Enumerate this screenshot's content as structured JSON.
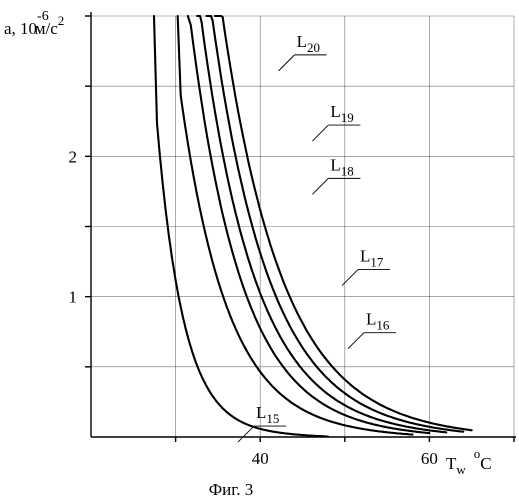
{
  "chart_data": {
    "type": "line",
    "title": "",
    "ylabel": {
      "base": "a, 10",
      "exp": "-6",
      "unit": "м/с",
      "unit_exp": "2"
    },
    "xlabel": {
      "base": "T",
      "sub": "w",
      "deg": "o",
      "unit": "C"
    },
    "caption": "Фиг. 3",
    "xlim": [
      20,
      70
    ],
    "ylim": [
      0,
      3
    ],
    "x_ticks": [
      {
        "value": 40,
        "label": "40"
      },
      {
        "value": 60,
        "label": "60"
      }
    ],
    "y_ticks": [
      {
        "value": 1,
        "label": "1"
      },
      {
        "value": 2,
        "label": "2"
      }
    ],
    "grid": true,
    "series": [
      {
        "name_base": "L",
        "name_sub": "15",
        "x_start": 27.8,
        "x_end": 48,
        "c": 2.2,
        "k": 0.32,
        "label_at": [
          39.5,
          0.135
        ]
      },
      {
        "name_base": "L",
        "name_sub": "16",
        "x_start": 30.6,
        "x_end": 58,
        "c": 2.4,
        "k": 0.18,
        "label_at": [
          52.5,
          0.8
        ]
      },
      {
        "name_base": "L",
        "name_sub": "17",
        "x_start": 31.8,
        "x_end": 60,
        "c": 2.9,
        "k": 0.165,
        "label_at": [
          51.8,
          1.25
        ]
      },
      {
        "name_base": "L",
        "name_sub": "18",
        "x_start": 32.9,
        "x_end": 62,
        "c": 3.0,
        "k": 0.155,
        "label_at": [
          48.3,
          1.9
        ]
      },
      {
        "name_base": "L",
        "name_sub": "19",
        "x_start": 34.0,
        "x_end": 64,
        "c": 3.1,
        "k": 0.147,
        "label_at": [
          48.3,
          2.28
        ]
      },
      {
        "name_base": "L",
        "name_sub": "20",
        "x_start": 35.0,
        "x_end": 65,
        "c": 3.2,
        "k": 0.14,
        "label_at": [
          44.3,
          2.78
        ]
      }
    ]
  }
}
